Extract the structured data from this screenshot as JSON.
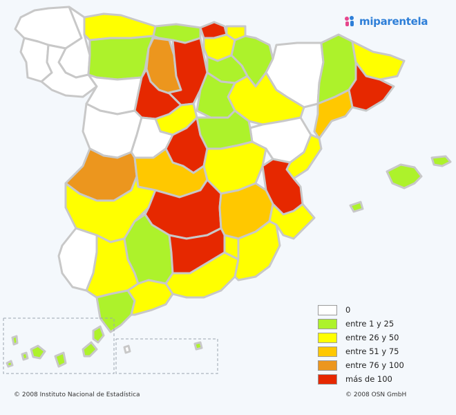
{
  "brand": {
    "logo_text": "miparentela",
    "logo_icon": "people-icon"
  },
  "colors": {
    "none": "#ffffff",
    "low": "#adf22b",
    "mid": "#ffff00",
    "high": "#ffc800",
    "very_high": "#ec961e",
    "max": "#e62800",
    "border": "#c8c8c8",
    "sea": "#f4f8fc"
  },
  "legend": [
    {
      "label": "0",
      "color": "#ffffff"
    },
    {
      "label": "entre 1 y 25",
      "color": "#adf22b"
    },
    {
      "label": "entre 26 y 50",
      "color": "#ffff00"
    },
    {
      "label": "entre 51 y 75",
      "color": "#ffc800"
    },
    {
      "label": "entre 76 y 100",
      "color": "#ec961e"
    },
    {
      "label": "más de 100",
      "color": "#e62800"
    }
  ],
  "credits": {
    "left": "© 2008 Instituto Nacional de Estadística",
    "right": "© 2008 OSN GmbH"
  }
}
